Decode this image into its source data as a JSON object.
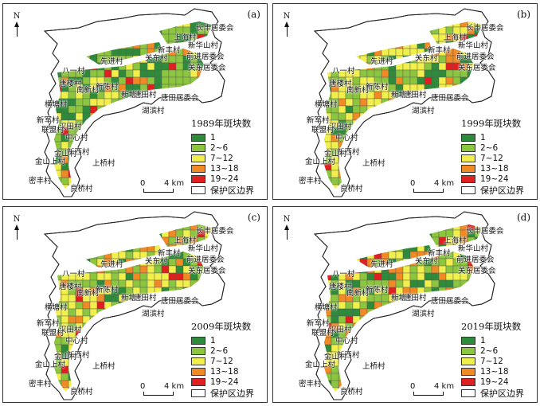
{
  "panels": [
    {
      "letter": "(a)",
      "legend_title": "1989年斑块数",
      "seed": 11
    },
    {
      "letter": "(b)",
      "legend_title": "1999年斑块数",
      "seed": 23
    },
    {
      "letter": "(c)",
      "legend_title": "2009年斑块数",
      "seed": 37
    },
    {
      "letter": "(d)",
      "legend_title": "2019年斑块数",
      "seed": 51
    }
  ],
  "north_label": "N",
  "scale": {
    "zero": "0",
    "distance": "4 km"
  },
  "legend": {
    "classes": [
      {
        "label": "1",
        "color": "#2e8b3a"
      },
      {
        "label": "2~6",
        "color": "#8cc63e"
      },
      {
        "label": "7~12",
        "color": "#f1ef4c"
      },
      {
        "label": "13~18",
        "color": "#f08a24"
      },
      {
        "label": "19~24",
        "color": "#e02020"
      }
    ],
    "boundary_label": "保护区边界"
  },
  "place_names": [
    "长丰居委会",
    "上海村",
    "新华山村",
    "新丰村",
    "前进居委会",
    "关东村",
    "先进村",
    "关东居委会",
    "八一村",
    "唐楼村",
    "南新村",
    "新陈村",
    "新塘村",
    "唐田村",
    "唐田居委会",
    "湖滨村",
    "横塘村",
    "新军村",
    "汉田村",
    "联盟村",
    "中心村",
    "新西村",
    "金山上村",
    "金山村",
    "上桥村",
    "密丰村",
    "良桥村"
  ]
}
